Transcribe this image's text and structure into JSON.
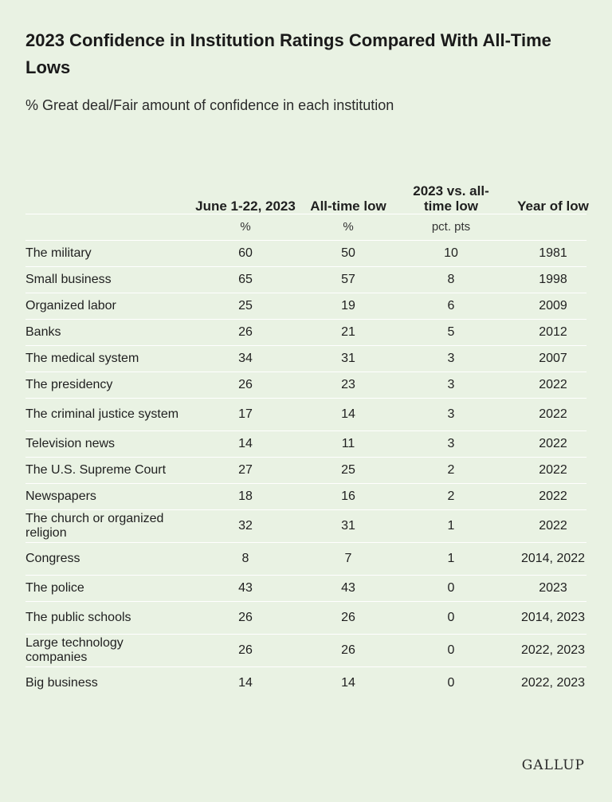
{
  "title": "2023 Confidence in Institution Ratings Compared With All-Time Lows",
  "subtitle": "% Great deal/Fair amount of confidence in each institution",
  "logo": "GALLUP",
  "chart_data": {
    "type": "table",
    "columns": [
      "June 1-22, 2023",
      "All-time low",
      "2023 vs. all-time low",
      "Year of low"
    ],
    "units": [
      "%",
      "%",
      "pct. pts",
      ""
    ],
    "rows": [
      {
        "label": "The military",
        "june": "60",
        "low": "50",
        "diff": "10",
        "year": "1981"
      },
      {
        "label": "Small business",
        "june": "65",
        "low": "57",
        "diff": "8",
        "year": "1998"
      },
      {
        "label": "Organized labor",
        "june": "25",
        "low": "19",
        "diff": "6",
        "year": "2009"
      },
      {
        "label": "Banks",
        "june": "26",
        "low": "21",
        "diff": "5",
        "year": "2012"
      },
      {
        "label": "The medical system",
        "june": "34",
        "low": "31",
        "diff": "3",
        "year": "2007"
      },
      {
        "label": "The presidency",
        "june": "26",
        "low": "23",
        "diff": "3",
        "year": "2022"
      },
      {
        "label": "The criminal justice system",
        "june": "17",
        "low": "14",
        "diff": "3",
        "year": "2022"
      },
      {
        "label": "Television news",
        "june": "14",
        "low": "11",
        "diff": "3",
        "year": "2022"
      },
      {
        "label": "The U.S. Supreme Court",
        "june": "27",
        "low": "25",
        "diff": "2",
        "year": "2022"
      },
      {
        "label": "Newspapers",
        "june": "18",
        "low": "16",
        "diff": "2",
        "year": "2022"
      },
      {
        "label": "The church or organized religion",
        "june": "32",
        "low": "31",
        "diff": "1",
        "year": "2022"
      },
      {
        "label": "Congress",
        "june": "8",
        "low": "7",
        "diff": "1",
        "year": "2014, 2022"
      },
      {
        "label": "The police",
        "june": "43",
        "low": "43",
        "diff": "0",
        "year": "2023"
      },
      {
        "label": "The public schools",
        "june": "26",
        "low": "26",
        "diff": "0",
        "year": "2014, 2023"
      },
      {
        "label": "Large technology companies",
        "june": "26",
        "low": "26",
        "diff": "0",
        "year": "2022, 2023"
      },
      {
        "label": "Big business",
        "june": "14",
        "low": "14",
        "diff": "0",
        "year": "2022, 2023"
      }
    ]
  }
}
